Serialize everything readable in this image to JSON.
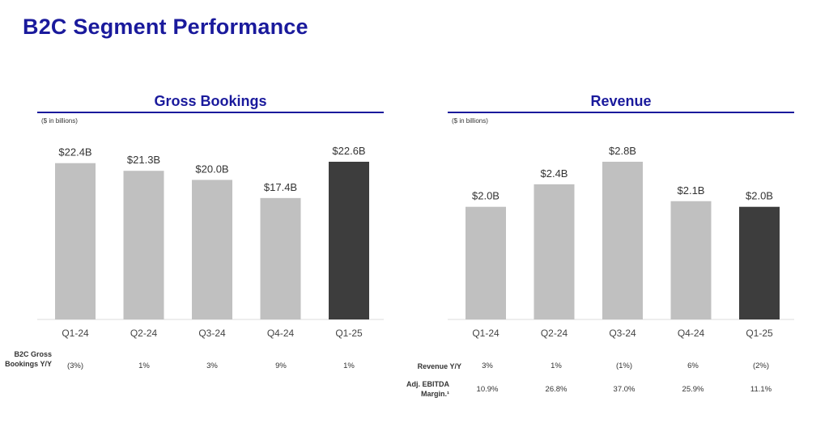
{
  "page": {
    "title": "B2C Segment Performance"
  },
  "chart_data": [
    {
      "type": "bar",
      "title": "Gross Bookings",
      "units_note": "($ in billions)",
      "categories": [
        "Q1-24",
        "Q2-24",
        "Q3-24",
        "Q4-24",
        "Q1-25"
      ],
      "values": [
        22.4,
        21.3,
        20.0,
        17.4,
        22.6
      ],
      "data_labels": [
        "$22.4B",
        "$21.3B",
        "$20.0B",
        "$17.4B",
        "$22.6B"
      ],
      "highlight_index": 4,
      "ylim": [
        0,
        22.6
      ],
      "colors": {
        "bar": "#c0c0c0",
        "highlight": "#3d3d3d",
        "accent": "#1a1a9c"
      },
      "metrics": [
        {
          "label": "B2C Gross Bookings Y/Y",
          "values": [
            "(3%)",
            "1%",
            "3%",
            "9%",
            "1%"
          ]
        }
      ]
    },
    {
      "type": "bar",
      "title": "Revenue",
      "units_note": "($ in billions)",
      "categories": [
        "Q1-24",
        "Q2-24",
        "Q3-24",
        "Q4-24",
        "Q1-25"
      ],
      "values": [
        2.0,
        2.4,
        2.8,
        2.1,
        2.0
      ],
      "data_labels": [
        "$2.0B",
        "$2.4B",
        "$2.8B",
        "$2.1B",
        "$2.0B"
      ],
      "highlight_index": 4,
      "ylim": [
        0,
        2.8
      ],
      "colors": {
        "bar": "#c0c0c0",
        "highlight": "#3d3d3d",
        "accent": "#1a1a9c"
      },
      "metrics": [
        {
          "label": "Revenue Y/Y",
          "values": [
            "3%",
            "1%",
            "(1%)",
            "6%",
            "(2%)"
          ]
        },
        {
          "label": "Adj. EBITDA Margin.¹",
          "values": [
            "10.9%",
            "26.8%",
            "37.0%",
            "25.9%",
            "11.1%"
          ]
        }
      ]
    }
  ]
}
